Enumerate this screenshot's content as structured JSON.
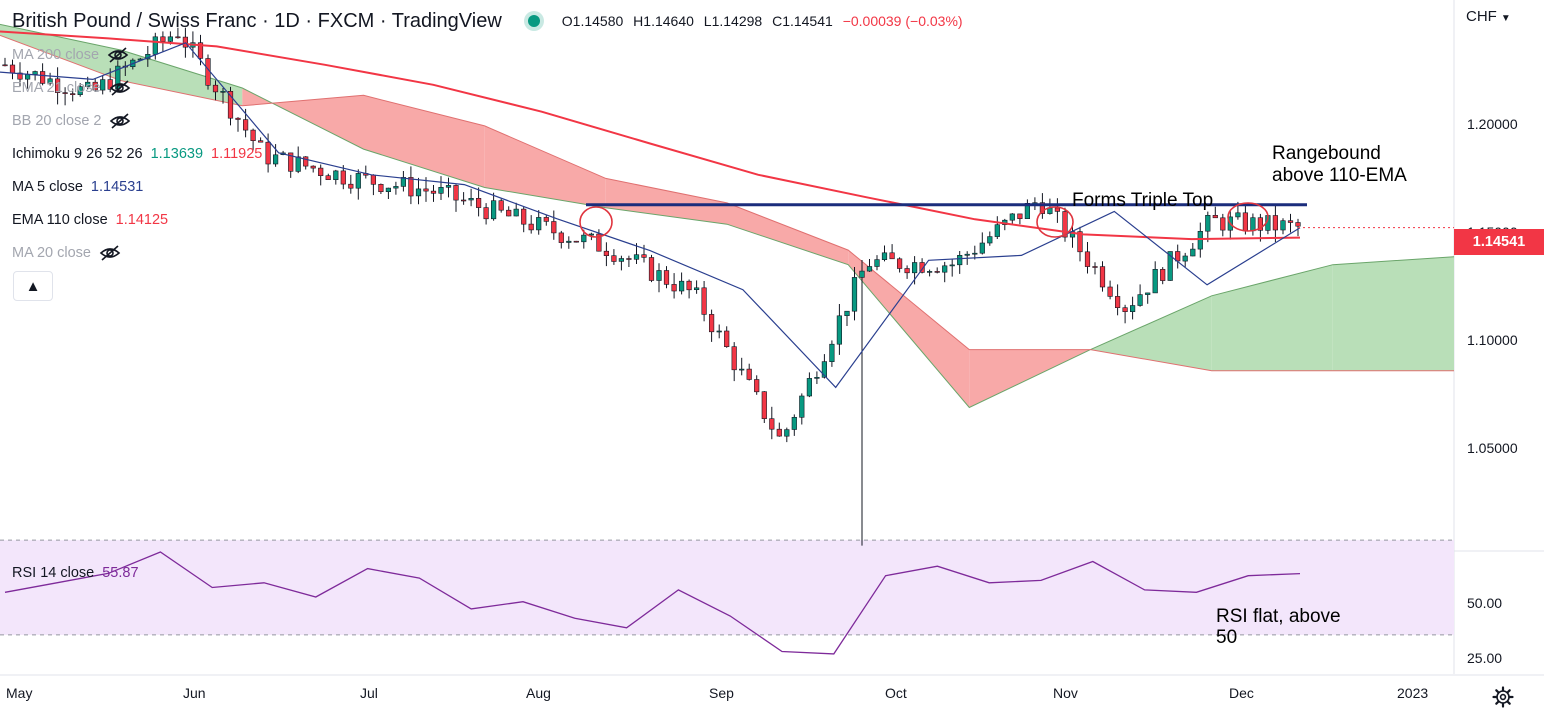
{
  "header": {
    "title": "British Pound / Swiss Franc · 1D · FXCM · TradingView",
    "open": "O1.14580",
    "high": "H1.14640",
    "low": "L1.14298",
    "close": "C1.14541",
    "change": "−0.00039 (−0.03%)",
    "currency": "CHF",
    "up_color": "#089981",
    "down_color": "#f23645"
  },
  "legend": {
    "ma200": "MA 200 close",
    "ema21": "EMA 21 close",
    "bb": "BB 20 close 2",
    "ichimoku": "Ichimoku 9 26 52 26",
    "ichimoku_val1": "1.13639",
    "ichimoku_val2": "1.11925",
    "ma5": "MA 5 close",
    "ma5_val": "1.14531",
    "ema110": "EMA 110 close",
    "ema110_val": "1.14125",
    "ma20": "MA 20 close"
  },
  "rsi_legend": {
    "label": "RSI 14 close",
    "value": "55.87"
  },
  "annotations": {
    "triple_top": "Forms Triple Top",
    "rangebound_1": "Rangebound",
    "rangebound_2": "above 110-EMA",
    "rsi_1": "RSI flat, above",
    "rsi_2": "50"
  },
  "price_tag": "1.14541",
  "price_axis": [
    "1.20000",
    "1.15000",
    "1.10000",
    "1.05000"
  ],
  "rsi_axis": [
    "50.00",
    "25.00"
  ],
  "time_axis": [
    "May",
    "Jun",
    "Jul",
    "Aug",
    "Sep",
    "Oct",
    "Nov",
    "Dec",
    "2023"
  ],
  "chart_data": [
    {
      "type": "line",
      "title": "British Pound / Swiss Franc · 1D · FXCM",
      "x_labels": [
        "May",
        "Jun",
        "Jul",
        "Aug",
        "Sep",
        "Oct",
        "Nov",
        "Dec",
        "2023"
      ],
      "ylim": [
        1.0135,
        1.2385
      ],
      "y_ticks": [
        1.2,
        1.15,
        1.1,
        1.05
      ],
      "series": [
        {
          "name": "EMA 110 close",
          "color": "#f23645",
          "values": [
            1.2256,
            1.2228,
            1.2195,
            1.212,
            1.2038,
            1.1928,
            1.1798,
            1.167,
            1.1578,
            1.1488,
            1.1426,
            1.1407,
            1.1413
          ]
        },
        {
          "name": "MA 5 close",
          "color": "#2a3f8f",
          "values": [
            1.209,
            1.206,
            1.221,
            1.176,
            1.167,
            1.163,
            1.149,
            1.136,
            1.12,
            1.08,
            1.132,
            1.134,
            1.152,
            1.122,
            1.1453
          ]
        }
      ],
      "price_points": [
        1.212,
        1.2,
        1.226,
        1.175,
        1.166,
        1.16,
        1.148,
        1.137,
        1.118,
        1.058,
        1.1312,
        1.1305,
        1.157,
        1.113,
        1.148,
        1.1454
      ],
      "low_extreme": 1.0153,
      "triple_top_level": 1.1547,
      "ichimoku_cloud": [
        {
          "span_a": 1.2285,
          "span_b": 1.224
        },
        {
          "span_a": 1.218,
          "span_b": 1.2055
        },
        {
          "span_a": 1.2025,
          "span_b": 1.1952
        },
        {
          "span_a": 1.1775,
          "span_b": 1.1995
        },
        {
          "span_a": 1.1618,
          "span_b": 1.187
        },
        {
          "span_a": 1.1535,
          "span_b": 1.1655
        },
        {
          "span_a": 1.1468,
          "span_b": 1.1555
        },
        {
          "span_a": 1.1302,
          "span_b": 1.1362
        },
        {
          "span_a": 1.0718,
          "span_b": 1.0955
        },
        {
          "span_a": 1.0955,
          "span_b": 1.0955
        },
        {
          "span_a": 1.1175,
          "span_b": 1.0868
        },
        {
          "span_a": 1.1302,
          "span_b": 1.0868
        },
        {
          "span_a": 1.1335,
          "span_b": 1.0868
        }
      ],
      "cloud_colors": {
        "bearish": "#f8a9a8",
        "bullish": "#b9dfb8"
      }
    },
    {
      "type": "line",
      "title": "RSI 14 close",
      "ylim": [
        13.5,
        65
      ],
      "y_ticks": [
        50,
        25
      ],
      "bands": [
        30,
        70
      ],
      "series": [
        {
          "name": "RSI 14 close",
          "color": "#7e2a9a",
          "values": [
            48,
            52,
            56,
            65,
            50,
            52,
            46,
            58,
            54,
            41,
            44,
            37,
            33,
            49,
            38,
            23,
            22,
            55,
            59,
            52,
            53,
            61,
            49,
            48,
            55,
            55.87
          ]
        }
      ],
      "band_color": "#f3e6fb"
    }
  ]
}
